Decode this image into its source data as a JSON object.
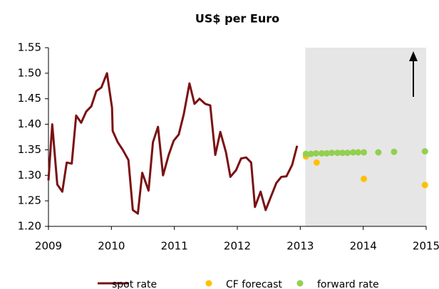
{
  "chart_data": {
    "type": "line",
    "title": "US$ per Euro",
    "xlim": [
      2009,
      2015
    ],
    "xticks": [
      2009,
      2010,
      2011,
      2012,
      2013,
      2014,
      2015
    ],
    "ylim": [
      1.2,
      1.55
    ],
    "yticks": [
      {
        "value": 1.2,
        "label": "1.20"
      },
      1.25,
      {
        "value": 1.3,
        "label": "1.30"
      },
      1.35,
      {
        "value": 1.4,
        "label": "1.40"
      },
      1.45,
      {
        "value": 1.5,
        "label": "1.50"
      },
      1.55
    ],
    "shaded_region": [
      2013.08,
      2015
    ],
    "shade_color": "#e6e6e6",
    "legend": "bottom",
    "series": [
      {
        "name": "spot rate",
        "color": "#7b1113",
        "style": "line",
        "x": [
          2009.0,
          2009.06,
          2009.14,
          2009.22,
          2009.29,
          2009.37,
          2009.44,
          2009.52,
          2009.6,
          2009.68,
          2009.76,
          2009.84,
          2009.93,
          2010.01,
          2010.02,
          2010.1,
          2010.18,
          2010.27,
          2010.34,
          2010.42,
          2010.49,
          2010.59,
          2010.66,
          2010.74,
          2010.82,
          2010.91,
          2010.99,
          2011.07,
          2011.15,
          2011.24,
          2011.32,
          2011.4,
          2011.49,
          2011.57,
          2011.65,
          2011.73,
          2011.82,
          2011.89,
          2011.98,
          2012.06,
          2012.14,
          2012.22,
          2012.28,
          2012.37,
          2012.45,
          2012.54,
          2012.62,
          2012.7,
          2012.78,
          2012.87,
          2012.95
        ],
        "values": [
          1.29,
          1.4,
          1.282,
          1.268,
          1.325,
          1.323,
          1.417,
          1.403,
          1.425,
          1.435,
          1.465,
          1.472,
          1.5,
          1.432,
          1.387,
          1.365,
          1.35,
          1.33,
          1.232,
          1.225,
          1.305,
          1.27,
          1.365,
          1.395,
          1.3,
          1.34,
          1.368,
          1.38,
          1.42,
          1.48,
          1.44,
          1.45,
          1.44,
          1.437,
          1.34,
          1.385,
          1.345,
          1.297,
          1.31,
          1.333,
          1.335,
          1.325,
          1.238,
          1.268,
          1.232,
          1.26,
          1.285,
          1.297,
          1.298,
          1.32,
          1.358
        ]
      },
      {
        "name": "CF forecast",
        "color": "#ffc000",
        "style": "dots",
        "x": [
          2013.09,
          2013.26,
          2014.01,
          2014.98
        ],
        "values": [
          1.337,
          1.325,
          1.293,
          1.281
        ]
      },
      {
        "name": "forward rate",
        "color": "#92d050",
        "style": "dots",
        "x": [
          2013.09,
          2013.17,
          2013.25,
          2013.34,
          2013.42,
          2013.5,
          2013.59,
          2013.67,
          2013.75,
          2013.84,
          2013.92,
          2014.01,
          2014.24,
          2014.49,
          2014.98
        ],
        "values": [
          1.342,
          1.342,
          1.343,
          1.343,
          1.343,
          1.344,
          1.344,
          1.344,
          1.344,
          1.345,
          1.345,
          1.345,
          1.345,
          1.346,
          1.347
        ]
      }
    ]
  }
}
